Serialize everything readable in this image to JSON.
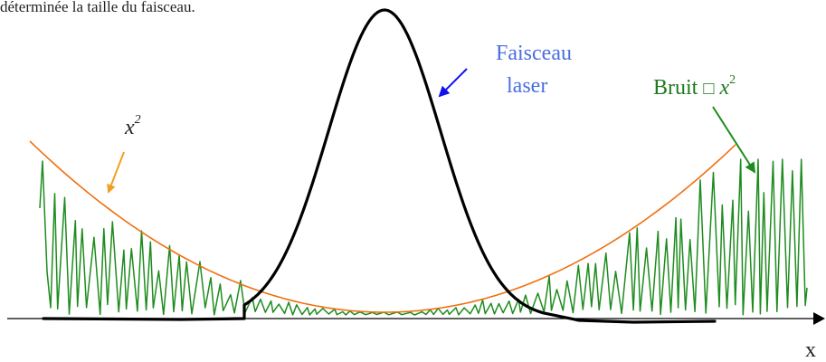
{
  "caption": "déterminée la taille du faisceau.",
  "labels": {
    "x2_base": "x",
    "x2_exp": "2",
    "beam_line1": "Faisceau",
    "beam_line2": "laser",
    "noise_prefix": "Bruit",
    "noise_symbol": "□",
    "noise_var": "x",
    "noise_exp": "2",
    "axis": "x"
  },
  "colors": {
    "beam": "#000000",
    "parabola": "#F07010",
    "noise": "#1E8C1E",
    "beam_label": "#4A6EE0",
    "beam_arrow": "#1010F0",
    "x2_arrow": "#F0A020",
    "noise_label": "#1E7A1E",
    "axis": "#000000"
  }
}
